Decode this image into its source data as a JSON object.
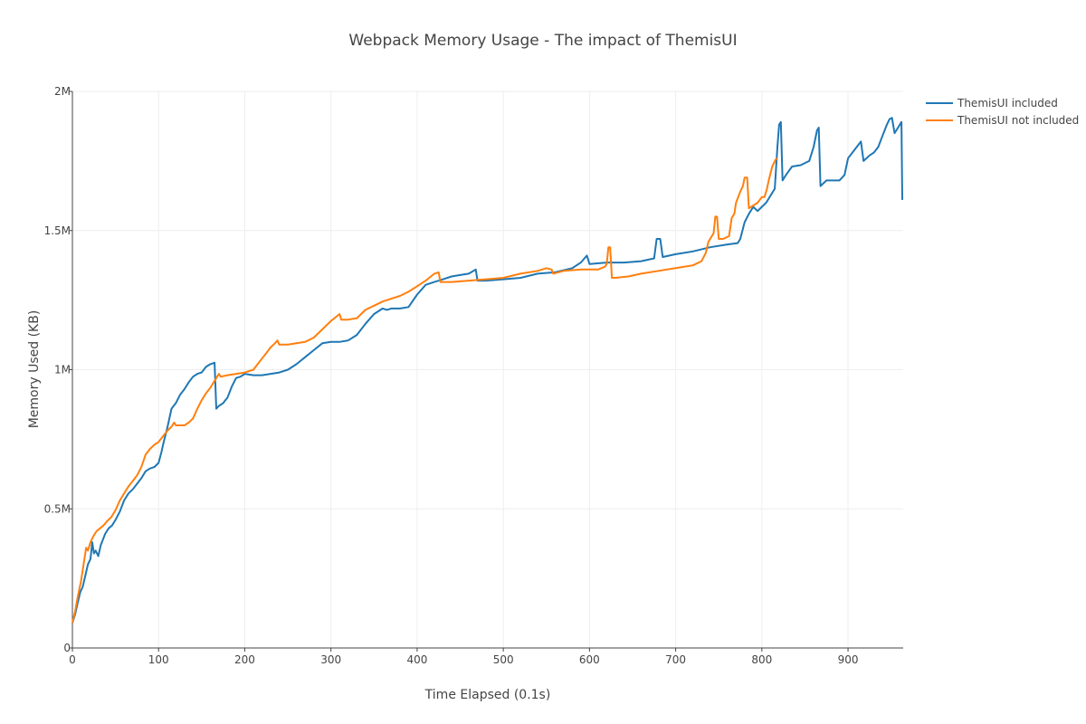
{
  "chart_data": {
    "type": "line",
    "title": "Webpack Memory Usage - The impact of ThemisUI",
    "xlabel": "Time Elapsed (0.1s)",
    "ylabel": "Memory Used (KB)",
    "xlim": [
      0,
      964
    ],
    "ylim": [
      0,
      2000000
    ],
    "x_ticks": [
      0,
      100,
      200,
      300,
      400,
      500,
      600,
      700,
      800,
      900
    ],
    "x_tick_labels": [
      "0",
      "100",
      "200",
      "300",
      "400",
      "500",
      "600",
      "700",
      "800",
      "900"
    ],
    "y_ticks": [
      0,
      500000,
      1000000,
      1500000,
      2000000
    ],
    "y_tick_labels": [
      "0",
      "0.5M",
      "1M",
      "1.5M",
      "2M"
    ],
    "grid": true,
    "legend_position": "top-right",
    "series": [
      {
        "name": "ThemisUI included",
        "color": "#1f77b4",
        "points": [
          [
            0,
            90000
          ],
          [
            3,
            120000
          ],
          [
            6,
            160000
          ],
          [
            9,
            200000
          ],
          [
            12,
            220000
          ],
          [
            15,
            260000
          ],
          [
            18,
            300000
          ],
          [
            21,
            320000
          ],
          [
            23,
            380000
          ],
          [
            25,
            340000
          ],
          [
            27,
            350000
          ],
          [
            30,
            330000
          ],
          [
            33,
            370000
          ],
          [
            38,
            410000
          ],
          [
            42,
            430000
          ],
          [
            46,
            440000
          ],
          [
            50,
            460000
          ],
          [
            55,
            490000
          ],
          [
            60,
            530000
          ],
          [
            65,
            555000
          ],
          [
            70,
            570000
          ],
          [
            75,
            590000
          ],
          [
            80,
            610000
          ],
          [
            85,
            635000
          ],
          [
            90,
            645000
          ],
          [
            95,
            650000
          ],
          [
            100,
            665000
          ],
          [
            103,
            700000
          ],
          [
            106,
            740000
          ],
          [
            110,
            790000
          ],
          [
            115,
            860000
          ],
          [
            120,
            880000
          ],
          [
            125,
            910000
          ],
          [
            130,
            930000
          ],
          [
            135,
            955000
          ],
          [
            140,
            975000
          ],
          [
            145,
            985000
          ],
          [
            150,
            990000
          ],
          [
            155,
            1010000
          ],
          [
            160,
            1020000
          ],
          [
            165,
            1025000
          ],
          [
            167,
            860000
          ],
          [
            170,
            870000
          ],
          [
            175,
            880000
          ],
          [
            180,
            900000
          ],
          [
            185,
            940000
          ],
          [
            190,
            970000
          ],
          [
            195,
            975000
          ],
          [
            200,
            985000
          ],
          [
            210,
            980000
          ],
          [
            220,
            980000
          ],
          [
            230,
            985000
          ],
          [
            240,
            990000
          ],
          [
            250,
            1000000
          ],
          [
            260,
            1020000
          ],
          [
            270,
            1045000
          ],
          [
            280,
            1070000
          ],
          [
            290,
            1095000
          ],
          [
            300,
            1100000
          ],
          [
            310,
            1100000
          ],
          [
            320,
            1105000
          ],
          [
            330,
            1125000
          ],
          [
            340,
            1165000
          ],
          [
            350,
            1200000
          ],
          [
            360,
            1220000
          ],
          [
            365,
            1215000
          ],
          [
            370,
            1220000
          ],
          [
            380,
            1220000
          ],
          [
            390,
            1225000
          ],
          [
            400,
            1270000
          ],
          [
            410,
            1305000
          ],
          [
            420,
            1315000
          ],
          [
            430,
            1325000
          ],
          [
            440,
            1335000
          ],
          [
            450,
            1340000
          ],
          [
            460,
            1345000
          ],
          [
            468,
            1360000
          ],
          [
            470,
            1320000
          ],
          [
            480,
            1320000
          ],
          [
            500,
            1325000
          ],
          [
            520,
            1330000
          ],
          [
            540,
            1345000
          ],
          [
            560,
            1350000
          ],
          [
            580,
            1365000
          ],
          [
            590,
            1385000
          ],
          [
            597,
            1410000
          ],
          [
            600,
            1380000
          ],
          [
            620,
            1385000
          ],
          [
            640,
            1385000
          ],
          [
            660,
            1390000
          ],
          [
            675,
            1400000
          ],
          [
            678,
            1470000
          ],
          [
            682,
            1470000
          ],
          [
            685,
            1405000
          ],
          [
            700,
            1415000
          ],
          [
            720,
            1425000
          ],
          [
            740,
            1440000
          ],
          [
            760,
            1450000
          ],
          [
            772,
            1455000
          ],
          [
            775,
            1470000
          ],
          [
            780,
            1530000
          ],
          [
            785,
            1560000
          ],
          [
            790,
            1585000
          ],
          [
            795,
            1570000
          ],
          [
            800,
            1585000
          ],
          [
            805,
            1600000
          ],
          [
            810,
            1625000
          ],
          [
            815,
            1650000
          ],
          [
            818,
            1800000
          ],
          [
            820,
            1880000
          ],
          [
            822,
            1890000
          ],
          [
            824,
            1680000
          ],
          [
            828,
            1700000
          ],
          [
            835,
            1730000
          ],
          [
            845,
            1735000
          ],
          [
            855,
            1750000
          ],
          [
            860,
            1800000
          ],
          [
            864,
            1860000
          ],
          [
            866,
            1870000
          ],
          [
            868,
            1660000
          ],
          [
            875,
            1680000
          ],
          [
            890,
            1680000
          ],
          [
            896,
            1700000
          ],
          [
            900,
            1760000
          ],
          [
            910,
            1800000
          ],
          [
            915,
            1820000
          ],
          [
            918,
            1750000
          ],
          [
            925,
            1770000
          ],
          [
            930,
            1780000
          ],
          [
            935,
            1800000
          ],
          [
            940,
            1840000
          ],
          [
            945,
            1880000
          ],
          [
            948,
            1900000
          ],
          [
            951,
            1905000
          ],
          [
            954,
            1850000
          ],
          [
            958,
            1870000
          ],
          [
            962,
            1890000
          ],
          [
            963,
            1610000
          ]
        ]
      },
      {
        "name": "ThemisUI not included",
        "color": "#ff7f0e",
        "points": [
          [
            0,
            90000
          ],
          [
            3,
            130000
          ],
          [
            6,
            180000
          ],
          [
            10,
            240000
          ],
          [
            14,
            320000
          ],
          [
            16,
            360000
          ],
          [
            18,
            350000
          ],
          [
            21,
            380000
          ],
          [
            24,
            400000
          ],
          [
            28,
            420000
          ],
          [
            32,
            430000
          ],
          [
            36,
            440000
          ],
          [
            40,
            455000
          ],
          [
            45,
            470000
          ],
          [
            50,
            495000
          ],
          [
            55,
            530000
          ],
          [
            60,
            555000
          ],
          [
            65,
            580000
          ],
          [
            70,
            600000
          ],
          [
            75,
            620000
          ],
          [
            80,
            650000
          ],
          [
            85,
            695000
          ],
          [
            90,
            715000
          ],
          [
            95,
            730000
          ],
          [
            100,
            740000
          ],
          [
            105,
            760000
          ],
          [
            110,
            780000
          ],
          [
            115,
            795000
          ],
          [
            118,
            810000
          ],
          [
            120,
            800000
          ],
          [
            130,
            800000
          ],
          [
            135,
            810000
          ],
          [
            140,
            825000
          ],
          [
            145,
            860000
          ],
          [
            150,
            890000
          ],
          [
            155,
            915000
          ],
          [
            160,
            935000
          ],
          [
            165,
            960000
          ],
          [
            168,
            975000
          ],
          [
            170,
            985000
          ],
          [
            172,
            975000
          ],
          [
            180,
            980000
          ],
          [
            190,
            985000
          ],
          [
            200,
            990000
          ],
          [
            210,
            1000000
          ],
          [
            215,
            1020000
          ],
          [
            220,
            1040000
          ],
          [
            225,
            1060000
          ],
          [
            230,
            1080000
          ],
          [
            235,
            1095000
          ],
          [
            238,
            1105000
          ],
          [
            240,
            1090000
          ],
          [
            250,
            1090000
          ],
          [
            260,
            1095000
          ],
          [
            270,
            1100000
          ],
          [
            280,
            1115000
          ],
          [
            290,
            1145000
          ],
          [
            300,
            1175000
          ],
          [
            310,
            1200000
          ],
          [
            312,
            1180000
          ],
          [
            320,
            1180000
          ],
          [
            330,
            1185000
          ],
          [
            340,
            1215000
          ],
          [
            350,
            1230000
          ],
          [
            360,
            1245000
          ],
          [
            370,
            1255000
          ],
          [
            380,
            1265000
          ],
          [
            390,
            1280000
          ],
          [
            400,
            1300000
          ],
          [
            410,
            1320000
          ],
          [
            420,
            1345000
          ],
          [
            425,
            1350000
          ],
          [
            427,
            1315000
          ],
          [
            440,
            1315000
          ],
          [
            460,
            1320000
          ],
          [
            480,
            1325000
          ],
          [
            500,
            1330000
          ],
          [
            520,
            1345000
          ],
          [
            540,
            1355000
          ],
          [
            550,
            1365000
          ],
          [
            556,
            1360000
          ],
          [
            558,
            1345000
          ],
          [
            570,
            1355000
          ],
          [
            590,
            1360000
          ],
          [
            610,
            1360000
          ],
          [
            618,
            1370000
          ],
          [
            620,
            1380000
          ],
          [
            622,
            1440000
          ],
          [
            624,
            1440000
          ],
          [
            626,
            1330000
          ],
          [
            630,
            1330000
          ],
          [
            645,
            1335000
          ],
          [
            660,
            1345000
          ],
          [
            680,
            1355000
          ],
          [
            700,
            1365000
          ],
          [
            720,
            1375000
          ],
          [
            730,
            1390000
          ],
          [
            735,
            1420000
          ],
          [
            738,
            1460000
          ],
          [
            742,
            1480000
          ],
          [
            744,
            1490000
          ],
          [
            746,
            1550000
          ],
          [
            748,
            1550000
          ],
          [
            750,
            1470000
          ],
          [
            755,
            1470000
          ],
          [
            762,
            1480000
          ],
          [
            765,
            1545000
          ],
          [
            768,
            1560000
          ],
          [
            770,
            1600000
          ],
          [
            775,
            1640000
          ],
          [
            778,
            1660000
          ],
          [
            780,
            1690000
          ],
          [
            783,
            1690000
          ],
          [
            785,
            1580000
          ],
          [
            790,
            1590000
          ],
          [
            795,
            1600000
          ],
          [
            800,
            1620000
          ],
          [
            803,
            1620000
          ],
          [
            806,
            1650000
          ],
          [
            808,
            1680000
          ],
          [
            812,
            1730000
          ],
          [
            816,
            1755000
          ],
          [
            818,
            1760000
          ]
        ]
      }
    ]
  }
}
